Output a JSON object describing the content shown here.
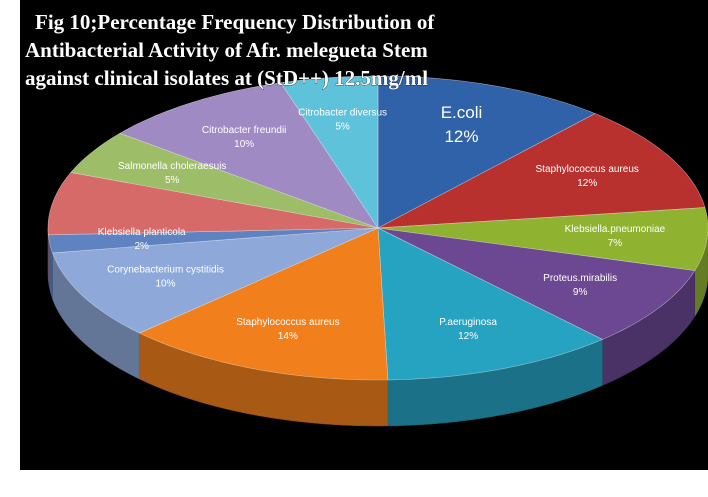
{
  "chart_data": {
    "type": "pie3d",
    "title": [
      "Fig 10;Percentage Frequency Distribution of",
      "Antibacterial Activity of Afr. melegueta Stem",
      "against  clinical isolates at (StD++) 12.5mg/ml"
    ],
    "categories": [
      "E.coli",
      "Staphylococcus aureus",
      "Klebsiella.pneumoniae",
      "Proteus.mirabilis",
      "P.aeruginosa",
      "Staphylococcus aureus",
      "Corynebacterium cystitidis",
      "Klebsiella planticola",
      null,
      "Salmonella choleraesuis",
      "Citrobacter freundii",
      "Citrobacter diversus"
    ],
    "values": [
      12,
      12,
      7,
      9,
      12,
      14,
      10,
      2,
      7,
      5,
      10,
      5
    ],
    "value_labels": [
      "12%",
      "12%",
      "7%",
      "9%",
      "12%",
      "14%",
      "10%",
      "2%",
      null,
      "5%",
      "10%",
      "5%"
    ],
    "colors": [
      "#2f62a8",
      "#b9312f",
      "#8fb331",
      "#6b4891",
      "#27a3c2",
      "#f07f1c",
      "#8ea9d9",
      "#5f82c0",
      "#d56a68",
      "#9dbd68",
      "#a08ac4",
      "#5ec2da"
    ]
  }
}
